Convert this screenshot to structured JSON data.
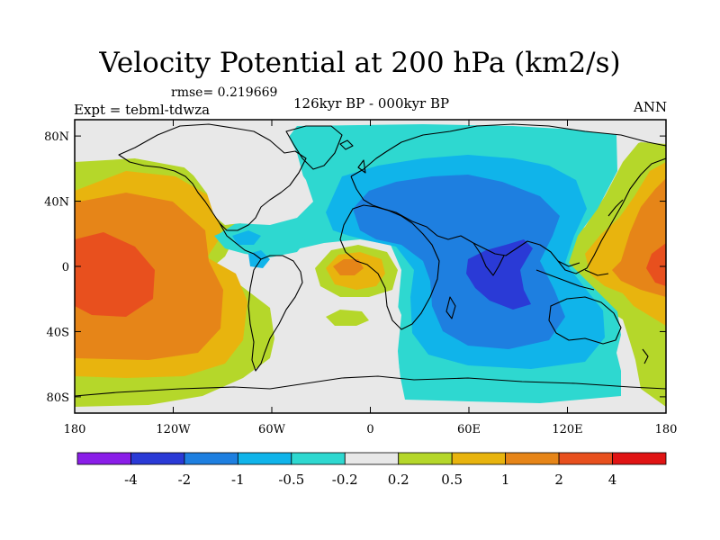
{
  "title": "Velocity Potential at 200 hPa (km2/s)",
  "rmse_label": "rmse= 0.219669",
  "experiment_label": "Expt = tebml-tdwza",
  "subtitle": "126kyr BP - 000kyr BP",
  "season": "ANN",
  "map": {
    "lon_ticks": [
      "180",
      "120W",
      "60W",
      "0",
      "60E",
      "120E",
      "180"
    ],
    "lat_ticks": [
      "80N",
      "40N",
      "0",
      "40S",
      "80S"
    ]
  },
  "colorbar": {
    "labels": [
      "-4",
      "-2",
      "-1",
      "-0.5",
      "-0.2",
      "0.2",
      "0.5",
      "1",
      "2",
      "4"
    ],
    "colors": [
      "#8a1ee8",
      "#2a3ad6",
      "#1e7fe0",
      "#10b4ea",
      "#2ed8d0",
      "#e8e8e8",
      "#b5d72a",
      "#e8b40e",
      "#e68518",
      "#e8501e",
      "#e01414"
    ]
  },
  "chart_data": {
    "type": "contour-map",
    "title": "Velocity Potential at 200 hPa (km2/s)",
    "units": "km2/s",
    "levels": [
      -4,
      -2,
      -1,
      -0.5,
      -0.2,
      0.2,
      0.5,
      1,
      2,
      4
    ],
    "lon_range": [
      -180,
      180
    ],
    "lat_range": [
      -90,
      90
    ],
    "regions": [
      {
        "name": "central-pacific-max",
        "lon": -165,
        "lat": 0,
        "value": 2.5
      },
      {
        "name": "west-pacific-max",
        "lon": 170,
        "lat": 0,
        "value": 2.3
      },
      {
        "name": "tropical-atlantic-max",
        "lon": -20,
        "lat": -2,
        "value": 1.2
      },
      {
        "name": "indian-ocean-min",
        "lon": 75,
        "lat": -5,
        "value": -2.5
      },
      {
        "name": "africa-asia-low",
        "lon": 40,
        "lat": 20,
        "value": -1.3
      }
    ]
  }
}
